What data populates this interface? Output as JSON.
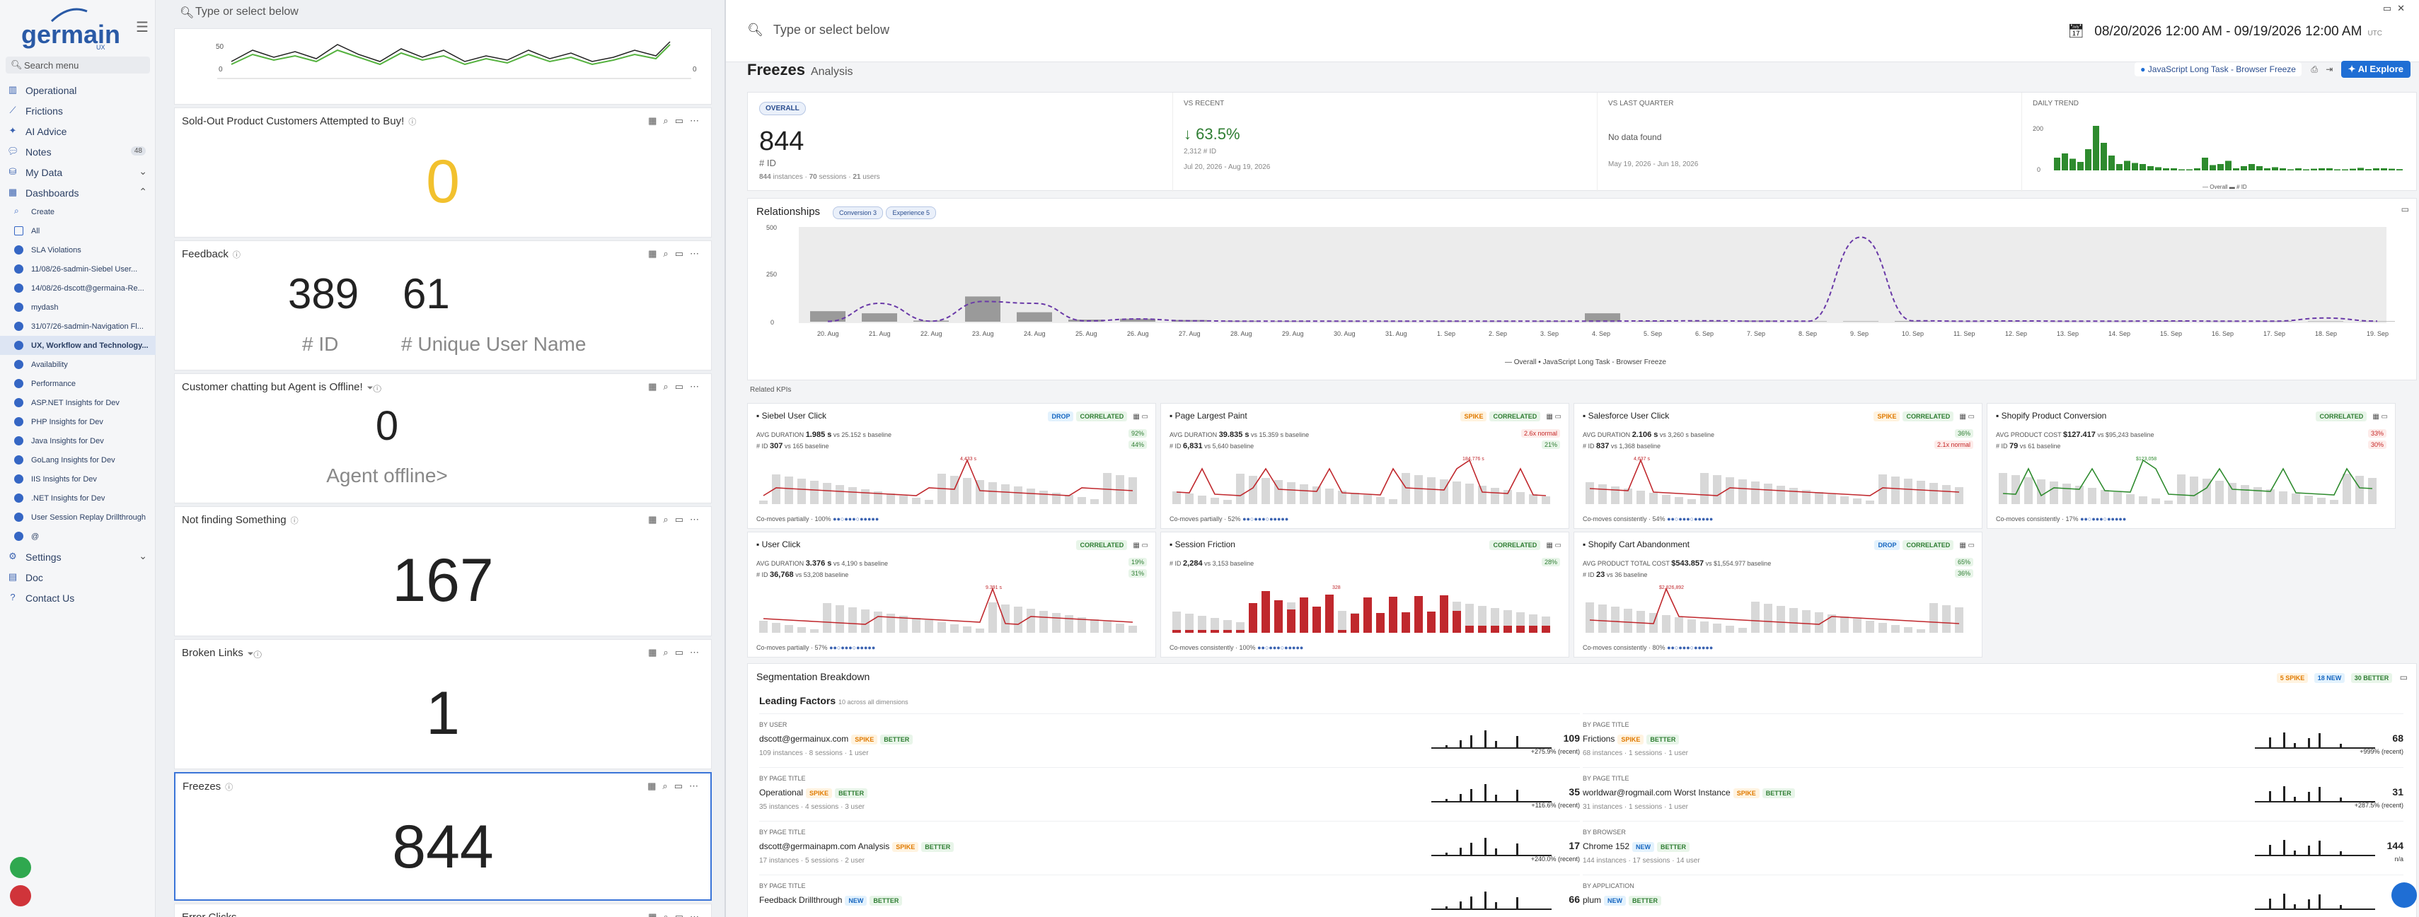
{
  "app": {
    "logo": "germain",
    "logo_sub": "UX"
  },
  "sidebar": {
    "search_placeholder": "Search menu",
    "items": [
      {
        "label": "Operational",
        "icon": "bar-chart-icon"
      },
      {
        "label": "Frictions",
        "icon": "line-chart-icon"
      },
      {
        "label": "AI Advice",
        "icon": "ai-icon"
      },
      {
        "label": "Notes",
        "icon": "chat-icon",
        "count": "48"
      },
      {
        "label": "My Data",
        "icon": "database-icon"
      },
      {
        "label": "Dashboards",
        "icon": "dashboard-icon"
      }
    ],
    "dashboards": [
      "Create",
      "All",
      "SLA Violations",
      "11/08/26-sadmin-Siebel User...",
      "14/08/26-dscott@germaina-Re...",
      "mydash",
      "31/07/26-sadmin-Navigation Fl...",
      "UX, Workflow and Technology...",
      "Availability",
      "Performance",
      "ASP.NET Insights for Dev",
      "PHP Insights for Dev",
      "Java Insights for Dev",
      "GoLang Insights for Dev",
      "IIS Insights for Dev",
      ".NET Insights for Dev",
      "User Session Replay Drillthrough",
      "@"
    ],
    "bottom": [
      {
        "label": "Settings",
        "icon": "gear-icon"
      },
      {
        "label": "Doc",
        "icon": "doc-icon"
      },
      {
        "label": "Contact Us",
        "icon": "help-icon"
      }
    ]
  },
  "left": {
    "search_placeholder": "Type or select below",
    "mini_chart": {
      "y_top": "50",
      "y_bottom": "0",
      "right_label": "0"
    },
    "widgets": [
      {
        "title": "Sold-Out Product Customers Attempted to Buy!",
        "value": "0"
      },
      {
        "title": "Feedback",
        "value1": "389",
        "value2": "61",
        "label1": "# ID",
        "label2": "# Unique User Name"
      },
      {
        "title": "Customer chatting but Agent is Offline!",
        "value": "0",
        "sublabel": "Agent offline>"
      },
      {
        "title": "Not finding Something",
        "value": "167"
      },
      {
        "title": "Broken Links",
        "value": "1"
      },
      {
        "title": "Freezes",
        "value": "844"
      },
      {
        "title": "Error Clicks"
      }
    ]
  },
  "right": {
    "search_placeholder": "Type or select below",
    "date_range": "08/20/2026 12:00 AM - 09/19/2026 12:00 AM",
    "tz": "UTC",
    "title": "Freezes",
    "title_sub": "Analysis",
    "filter_chip": "JavaScript Long Task - Browser Freeze",
    "ai_button": "AI Explore",
    "overall": {
      "badge": "OVERALL",
      "value": "844",
      "label": "# ID",
      "meta_instances": "844",
      "meta_sessions": "70",
      "meta_users": "21",
      "meta_i_label": "instances",
      "meta_s_label": "sessions",
      "meta_u_label": "users"
    },
    "vs_recent": {
      "label": "VS RECENT",
      "pct": "63.5%",
      "base": "2,312 # ID",
      "range": "Jul 20, 2026 - Aug 19, 2026"
    },
    "vs_last_quarter": {
      "label": "VS LAST QUARTER",
      "text": "No data found",
      "range": "May 19, 2026 - Jun 18, 2026"
    },
    "daily_trend": {
      "label": "DAILY TREND",
      "y_top": "200",
      "y_bottom": "0",
      "legend_overall": "Overall",
      "legend_id": "# ID"
    },
    "relationships": {
      "title": "Relationships",
      "chips": [
        "Conversion 3",
        "Experience 5"
      ],
      "y_ticks": [
        "500",
        "250",
        "0"
      ],
      "x_labels": [
        "20. Aug",
        "21. Aug",
        "22. Aug",
        "23. Aug",
        "24. Aug",
        "25. Aug",
        "26. Aug",
        "27. Aug",
        "28. Aug",
        "29. Aug",
        "30. Aug",
        "31. Aug",
        "1. Sep",
        "2. Sep",
        "3. Sep",
        "4. Sep",
        "5. Sep",
        "6. Sep",
        "7. Sep",
        "8. Sep",
        "9. Sep",
        "10. Sep",
        "11. Sep",
        "12. Sep",
        "13. Sep",
        "14. Sep",
        "15. Sep",
        "16. Sep",
        "17. Sep",
        "18. Sep",
        "19. Sep"
      ],
      "legend": [
        "Overall",
        "JavaScript Long Task - Browser Freeze"
      ]
    },
    "related_title": "Related KPIs",
    "kpis": [
      {
        "title": "Siebel User Click",
        "tags": [
          "DROP",
          "CORRELATED"
        ],
        "l1k": "AVG DURATION",
        "l1v": "1.985 s",
        "l1b": "vs 25.152 s baseline",
        "l2k": "# ID",
        "l2v": "307",
        "l2b": "vs 165 baseline",
        "d1": "92%",
        "d2": "44%",
        "d1c": "up",
        "d2c": "up",
        "foot": "Co-moves partially · 100%",
        "peak": "4,433 s"
      },
      {
        "title": "Page Largest Paint",
        "tags": [
          "SPIKE",
          "CORRELATED"
        ],
        "l1k": "AVG DURATION",
        "l1v": "39.835 s",
        "l1b": "vs 15.359 s baseline",
        "l2k": "# ID",
        "l2v": "6,831",
        "l2b": "vs 5,640 baseline",
        "d1": "2.6x normal",
        "d2": "21%",
        "d1c": "dn",
        "d2c": "up",
        "foot": "Co-moves partially · 52%",
        "peak": "184,776 s"
      },
      {
        "title": "Salesforce User Click",
        "tags": [
          "SPIKE",
          "CORRELATED"
        ],
        "l1k": "AVG DURATION",
        "l1v": "2.106 s",
        "l1b": "vs 3,260 s baseline",
        "l2k": "# ID",
        "l2v": "837",
        "l2b": "vs 1,368 baseline",
        "d1": "36%",
        "d2": "2.1x normal",
        "d1c": "up",
        "d2c": "dn",
        "foot": "Co-moves consistently · 54%",
        "peak": "4,637 s"
      },
      {
        "title": "Shopify Product Conversion",
        "tags": [
          "CORRELATED"
        ],
        "l1k": "AVG PRODUCT COST",
        "l1v": "$127.417",
        "l1b": "vs $95,243 baseline",
        "l2k": "# ID",
        "l2v": "79",
        "l2b": "vs 61 baseline",
        "d1": "33%",
        "d2": "30%",
        "d1c": "dn",
        "d2c": "dn",
        "foot": "Co-moves consistently · 17%",
        "peak": "$123,058"
      },
      {
        "title": "User Click",
        "tags": [
          "CORRELATED"
        ],
        "l1k": "AVG DURATION",
        "l1v": "3.376 s",
        "l1b": "vs 4,190 s baseline",
        "l2k": "# ID",
        "l2v": "36,768",
        "l2b": "vs 53,208 baseline",
        "d1": "19%",
        "d2": "31%",
        "d1c": "up",
        "d2c": "up",
        "foot": "Co-moves partially · 57%",
        "peak": "9.391 s"
      },
      {
        "title": "Session Friction",
        "tags": [
          "CORRELATED"
        ],
        "l1k": "# ID",
        "l1v": "2,284",
        "l1b": "vs 3,153 baseline",
        "l2k": "",
        "l2v": "",
        "l2b": "",
        "d1": "28%",
        "d2": "",
        "d1c": "up",
        "d2c": "",
        "foot": "Co-moves consistently · 100%",
        "peak": "328"
      },
      {
        "title": "Shopify Cart Abandonment",
        "tags": [
          "DROP",
          "CORRELATED"
        ],
        "l1k": "AVG PRODUCT TOTAL COST",
        "l1v": "$543.857",
        "l1b": "vs $1,554.977 baseline",
        "l2k": "# ID",
        "l2v": "23",
        "l2b": "vs 36 baseline",
        "d1": "65%",
        "d2": "36%",
        "d1c": "up",
        "d2c": "up",
        "foot": "Co-moves consistently · 80%",
        "peak": "$2,826,892"
      }
    ],
    "segmentation": {
      "title": "Segmentation Breakdown",
      "badges": [
        "5 SPIKE",
        "18 NEW",
        "30 BETTER"
      ],
      "leading_title": "Leading Factors",
      "leading_sub": "10 across all dimensions",
      "rows": [
        {
          "by": "BY USER",
          "name": "dscott@germainux.com",
          "tags": [
            "SPIKE",
            "BETTER"
          ],
          "inst": "109",
          "sess": "8",
          "users": "1",
          "val": "109",
          "chg": "+275.9% (recent)"
        },
        {
          "by": "BY PAGE TITLE",
          "name": "Frictions",
          "tags": [
            "SPIKE",
            "BETTER"
          ],
          "inst": "68",
          "sess": "1",
          "users": "1",
          "val": "68",
          "chg": "+999% (recent)"
        },
        {
          "by": "BY PAGE TITLE",
          "name": "Operational",
          "tags": [
            "SPIKE",
            "BETTER"
          ],
          "inst": "35",
          "sess": "4",
          "users": "3",
          "val": "35",
          "chg": "+116.6% (recent)"
        },
        {
          "by": "BY PAGE TITLE",
          "name": "worldwar@rogmail.com Worst Instance",
          "tags": [
            "SPIKE",
            "BETTER"
          ],
          "inst": "31",
          "sess": "1",
          "users": "1",
          "val": "31",
          "chg": "+287.5% (recent)"
        },
        {
          "by": "BY PAGE TITLE",
          "name": "dscott@germainapm.com Analysis",
          "tags": [
            "SPIKE",
            "BETTER"
          ],
          "inst": "17",
          "sess": "5",
          "users": "2",
          "val": "17",
          "chg": "+240.0% (recent)"
        },
        {
          "by": "BY BROWSER",
          "name": "Chrome 152",
          "tags": [
            "NEW",
            "BETTER"
          ],
          "inst": "144",
          "sess": "17",
          "users": "14",
          "val": "144",
          "chg": "n/a"
        },
        {
          "by": "BY PAGE TITLE",
          "name": "Feedback Drillthrough",
          "tags": [
            "NEW",
            "BETTER"
          ],
          "inst": "",
          "sess": "",
          "users": "",
          "val": "66",
          "chg": ""
        },
        {
          "by": "BY APPLICATION",
          "name": "plum",
          "tags": [
            "NEW",
            "BETTER"
          ],
          "inst": "",
          "sess": "",
          "users": "",
          "val": "",
          "chg": ""
        }
      ]
    }
  },
  "colors": {
    "accent": "#1f6ed4",
    "green": "#2e8b2e",
    "red": "#c0282d",
    "yellow": "#f2c12e",
    "purple": "#6a3aa8"
  }
}
